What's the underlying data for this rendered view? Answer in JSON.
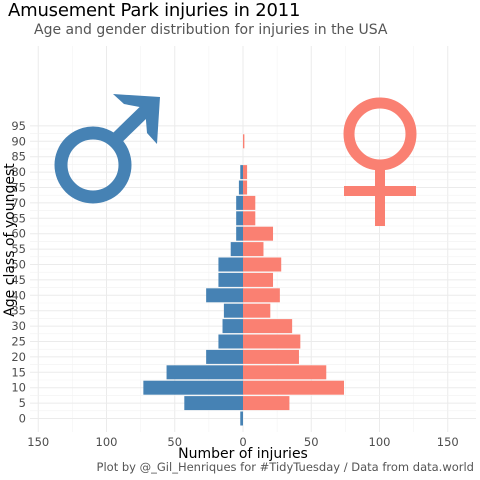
{
  "title": "Amusement Park injuries in 2011",
  "subtitle": "Age and gender distribution for injuries in the USA",
  "caption": "Plot by @_Gil_Henriques for #TidyTuesday / Data from data.world",
  "icons": {
    "male": "male-symbol-icon",
    "female": "female-symbol-icon"
  },
  "chart_data": {
    "type": "bar",
    "orientation": "horizontal",
    "xlabel": "Number of injuries",
    "ylabel": "Age class of youngest",
    "xlim": [
      -150,
      150
    ],
    "ylim": [
      0,
      95
    ],
    "x_ticks": [
      -150,
      -100,
      -50,
      0,
      50,
      100,
      150
    ],
    "x_tick_labels": [
      "150",
      "100",
      "50",
      "0",
      "50",
      "100",
      "150"
    ],
    "y_ticks": [
      0,
      5,
      10,
      15,
      20,
      25,
      30,
      35,
      40,
      45,
      50,
      55,
      60,
      65,
      70,
      75,
      80,
      85,
      90,
      95
    ],
    "grid": true,
    "categories": [
      0,
      5,
      10,
      15,
      20,
      25,
      30,
      35,
      40,
      45,
      50,
      55,
      60,
      65,
      70,
      75,
      80,
      85,
      90,
      95
    ],
    "series": [
      {
        "values": [
          2,
          43,
          73,
          56,
          27,
          18,
          15,
          14,
          27,
          18,
          18,
          9,
          5,
          5,
          5,
          3,
          2,
          0,
          0,
          0
        ],
        "color": "#4682b4"
      },
      {
        "values": [
          0,
          34,
          74,
          61,
          41,
          42,
          36,
          20,
          27,
          22,
          28,
          15,
          22,
          9,
          9,
          3,
          3,
          0,
          1,
          0
        ],
        "color": "#fa8072"
      }
    ]
  }
}
